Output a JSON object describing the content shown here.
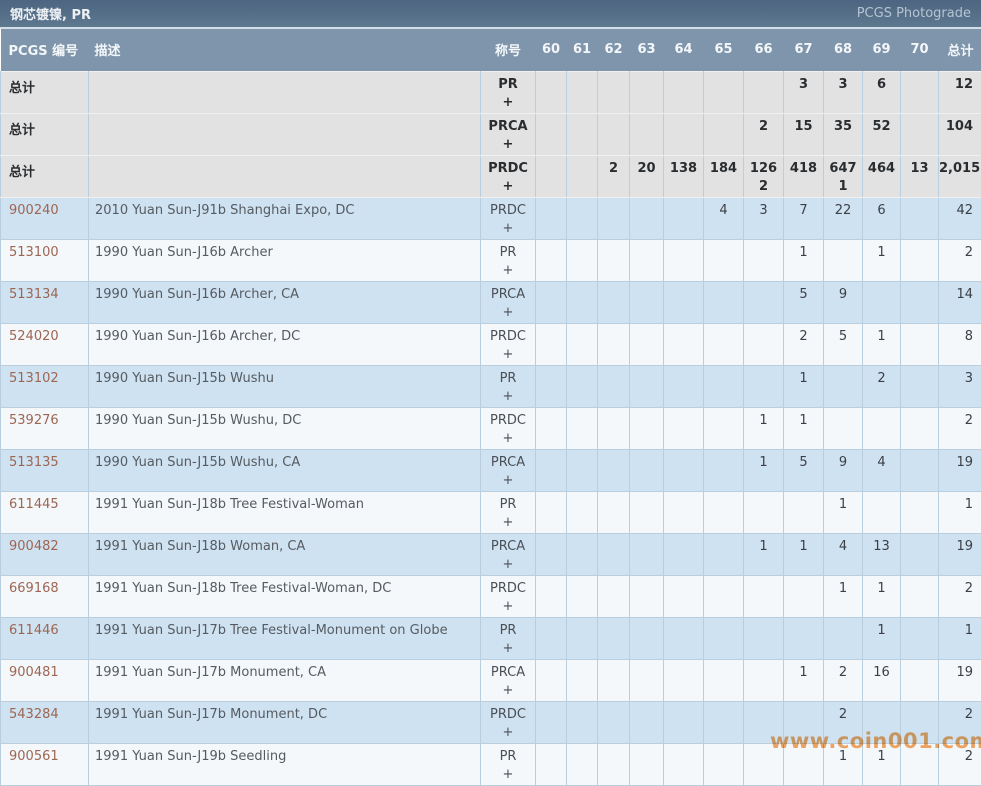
{
  "titlebar": {
    "title": "钢芯镀镍, PR",
    "photograde_link": "PCGS Photograde"
  },
  "watermark": {
    "text": "www.coin001.com",
    "color": "#f5994a"
  },
  "table": {
    "headers": {
      "pcgs_no": "PCGS 编号",
      "desc": "描述",
      "designation": "称号",
      "grades": [
        "60",
        "61",
        "62",
        "63",
        "64",
        "65",
        "66",
        "67",
        "68",
        "69",
        "70"
      ],
      "total": "总计"
    },
    "summary_label": "总计",
    "plus_symbol": "+",
    "summary_rows": [
      {
        "designation": "PR",
        "grades": {
          "67": "3",
          "68": "3",
          "69": "6"
        },
        "plus": {},
        "total": "12"
      },
      {
        "designation": "PRCA",
        "grades": {
          "66": "2",
          "67": "15",
          "68": "35",
          "69": "52"
        },
        "plus": {},
        "total": "104"
      },
      {
        "designation": "PRDC",
        "grades": {
          "62": "2",
          "63": "20",
          "64": "138",
          "65": "184",
          "66": "126",
          "67": "418",
          "68": "647",
          "69": "464",
          "70": "13"
        },
        "plus": {
          "66": "2",
          "68": "1"
        },
        "total": "2,015"
      }
    ],
    "rows": [
      {
        "pcgs_no": "900240",
        "desc": "2010 Yuan Sun-J91b Shanghai Expo, DC",
        "designation": "PRDC",
        "grades": {
          "65": "4",
          "66": "3",
          "67": "7",
          "68": "22",
          "69": "6"
        },
        "plus": {},
        "total": "42"
      },
      {
        "pcgs_no": "513100",
        "desc": "1990 Yuan Sun-J16b Archer",
        "designation": "PR",
        "grades": {
          "67": "1",
          "69": "1"
        },
        "plus": {},
        "total": "2"
      },
      {
        "pcgs_no": "513134",
        "desc": "1990 Yuan Sun-J16b Archer, CA",
        "designation": "PRCA",
        "grades": {
          "67": "5",
          "68": "9"
        },
        "plus": {},
        "total": "14"
      },
      {
        "pcgs_no": "524020",
        "desc": "1990 Yuan Sun-J16b Archer, DC",
        "designation": "PRDC",
        "grades": {
          "67": "2",
          "68": "5",
          "69": "1"
        },
        "plus": {},
        "total": "8"
      },
      {
        "pcgs_no": "513102",
        "desc": "1990 Yuan Sun-J15b Wushu",
        "designation": "PR",
        "grades": {
          "67": "1",
          "69": "2"
        },
        "plus": {},
        "total": "3"
      },
      {
        "pcgs_no": "539276",
        "desc": "1990 Yuan Sun-J15b Wushu, DC",
        "designation": "PRDC",
        "grades": {
          "66": "1",
          "67": "1"
        },
        "plus": {},
        "total": "2"
      },
      {
        "pcgs_no": "513135",
        "desc": "1990 Yuan Sun-J15b Wushu, CA",
        "designation": "PRCA",
        "grades": {
          "66": "1",
          "67": "5",
          "68": "9",
          "69": "4"
        },
        "plus": {},
        "total": "19"
      },
      {
        "pcgs_no": "611445",
        "desc": "1991 Yuan Sun-J18b Tree Festival-Woman",
        "designation": "PR",
        "grades": {
          "68": "1"
        },
        "plus": {},
        "total": "1"
      },
      {
        "pcgs_no": "900482",
        "desc": "1991 Yuan Sun-J18b Woman, CA",
        "designation": "PRCA",
        "grades": {
          "66": "1",
          "67": "1",
          "68": "4",
          "69": "13"
        },
        "plus": {},
        "total": "19"
      },
      {
        "pcgs_no": "669168",
        "desc": "1991 Yuan Sun-J18b Tree Festival-Woman, DC",
        "designation": "PRDC",
        "grades": {
          "68": "1",
          "69": "1"
        },
        "plus": {},
        "total": "2"
      },
      {
        "pcgs_no": "611446",
        "desc": "1991 Yuan Sun-J17b Tree Festival-Monument on Globe",
        "designation": "PR",
        "grades": {
          "69": "1"
        },
        "plus": {},
        "total": "1"
      },
      {
        "pcgs_no": "900481",
        "desc": "1991 Yuan Sun-J17b Monument, CA",
        "designation": "PRCA",
        "grades": {
          "67": "1",
          "68": "2",
          "69": "16"
        },
        "plus": {},
        "total": "19"
      },
      {
        "pcgs_no": "543284",
        "desc": "1991 Yuan Sun-J17b Monument, DC",
        "designation": "PRDC",
        "grades": {
          "68": "2"
        },
        "plus": {},
        "total": "2"
      },
      {
        "pcgs_no": "900561",
        "desc": "1991 Yuan Sun-J19b Seedling",
        "designation": "PR",
        "grades": {
          "68": "1",
          "69": "1"
        },
        "plus": {},
        "total": "2"
      }
    ]
  }
}
